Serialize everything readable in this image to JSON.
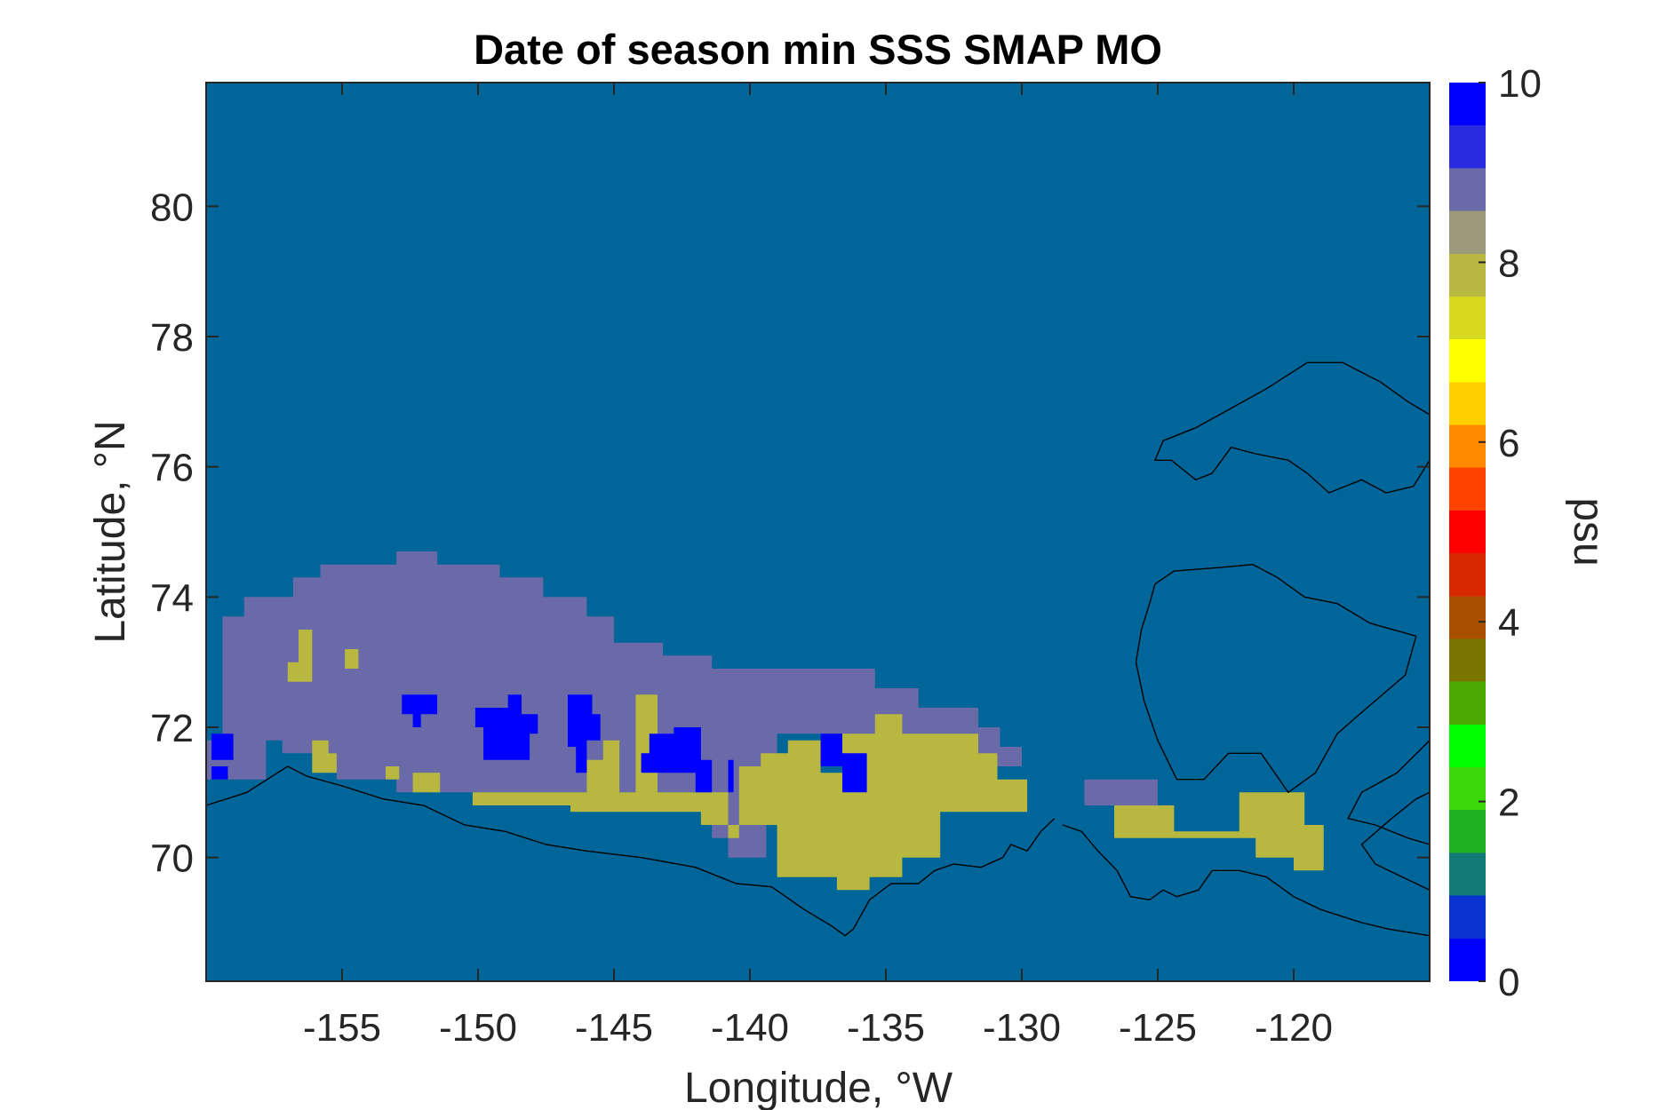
{
  "chart_data": {
    "type": "heatmap",
    "title": "Date of season min SSS SMAP MO",
    "xlabel": "Longitude, °W",
    "ylabel": "Latitude, °N",
    "xlim": [
      -160,
      -115
    ],
    "ylim": [
      68.1,
      81.9
    ],
    "xticks": [
      -155,
      -150,
      -145,
      -140,
      -135,
      -130,
      -125,
      -120
    ],
    "xtick_labels": [
      "-155",
      "-150",
      "-145",
      "-140",
      "-135",
      "-130",
      "-125",
      "-120"
    ],
    "yticks": [
      70,
      72,
      74,
      76,
      78,
      80
    ],
    "ytick_labels": [
      "70",
      "72",
      "74",
      "76",
      "78",
      "80"
    ],
    "colorbar": {
      "label": "psu",
      "range": [
        0,
        10
      ],
      "ticks": [
        0,
        2,
        4,
        6,
        8,
        10
      ],
      "tick_labels": [
        "0",
        "2",
        "4",
        "6",
        "8",
        "10"
      ]
    },
    "background_value": 1.3,
    "regions": [
      {
        "value": 9.2,
        "polygon": [
          [
            -160,
            71.8
          ],
          [
            -159.4,
            71.8
          ],
          [
            -159.4,
            73.7
          ],
          [
            -158.6,
            73.7
          ],
          [
            -158.6,
            74
          ],
          [
            -156.8,
            74
          ],
          [
            -156.8,
            74.3
          ],
          [
            -155.8,
            74.3
          ],
          [
            -155.8,
            74.5
          ],
          [
            -153,
            74.5
          ],
          [
            -153,
            74.7
          ],
          [
            -151.5,
            74.7
          ],
          [
            -151.5,
            74.5
          ],
          [
            -149.2,
            74.5
          ],
          [
            -149.2,
            74.3
          ],
          [
            -147.6,
            74.3
          ],
          [
            -147.6,
            74
          ],
          [
            -146,
            74
          ],
          [
            -146,
            73.7
          ],
          [
            -145,
            73.7
          ],
          [
            -145,
            73.3
          ],
          [
            -143.2,
            73.3
          ],
          [
            -143.2,
            73.1
          ],
          [
            -141.4,
            73.1
          ],
          [
            -141.4,
            72.9
          ],
          [
            -135.4,
            72.9
          ],
          [
            -135.4,
            72.6
          ],
          [
            -133.8,
            72.6
          ],
          [
            -133.8,
            72.3
          ],
          [
            -131.6,
            72.3
          ],
          [
            -131.6,
            72
          ],
          [
            -130.8,
            72
          ],
          [
            -130.8,
            71.7
          ],
          [
            -130,
            71.7
          ],
          [
            -130,
            71.4
          ],
          [
            -136.6,
            71.4
          ],
          [
            -136.6,
            71.9
          ],
          [
            -139,
            71.9
          ],
          [
            -139,
            70.5
          ],
          [
            -139.4,
            70.5
          ],
          [
            -139.4,
            70.0
          ],
          [
            -140.8,
            70.0
          ],
          [
            -140.8,
            70.3
          ],
          [
            -141.4,
            70.3
          ],
          [
            -141.4,
            71.0
          ],
          [
            -153,
            71.0
          ],
          [
            -153,
            71.2
          ],
          [
            -155.2,
            71.2
          ],
          [
            -155.2,
            71.6
          ],
          [
            -157.2,
            71.6
          ],
          [
            -157.2,
            71.8
          ],
          [
            -157.8,
            71.8
          ],
          [
            -157.8,
            71.2
          ],
          [
            -160,
            71.2
          ]
        ]
      },
      {
        "value": 9.2,
        "polygon": [
          [
            -127.7,
            71.2
          ],
          [
            -125.0,
            71.2
          ],
          [
            -125.0,
            70.8
          ],
          [
            -127.7,
            70.8
          ]
        ]
      },
      {
        "value": 8.2,
        "polygon": [
          [
            -150.2,
            71.0
          ],
          [
            -146,
            71.0
          ],
          [
            -146,
            71.5
          ],
          [
            -145.4,
            71.5
          ],
          [
            -145.4,
            71.8
          ],
          [
            -144.8,
            71.8
          ],
          [
            -144.8,
            71.0
          ],
          [
            -144.2,
            71.0
          ],
          [
            -144.2,
            72.5
          ],
          [
            -143.4,
            72.5
          ],
          [
            -143.4,
            71.0
          ],
          [
            -140.8,
            71.0
          ],
          [
            -140.8,
            70.3
          ],
          [
            -140.4,
            70.3
          ],
          [
            -140.4,
            71.4
          ],
          [
            -139.6,
            71.4
          ],
          [
            -139.6,
            71.6
          ],
          [
            -138.6,
            71.6
          ],
          [
            -138.6,
            71.8
          ],
          [
            -137.4,
            71.8
          ],
          [
            -137.4,
            71.3
          ],
          [
            -136.6,
            71.3
          ],
          [
            -136.6,
            71.9
          ],
          [
            -135.4,
            71.9
          ],
          [
            -135.4,
            72.2
          ],
          [
            -134.4,
            72.2
          ],
          [
            -134.4,
            71.9
          ],
          [
            -131.6,
            71.9
          ],
          [
            -131.6,
            71.6
          ],
          [
            -130.9,
            71.6
          ],
          [
            -130.9,
            71.2
          ],
          [
            -129.8,
            71.2
          ],
          [
            -129.8,
            70.7
          ],
          [
            -133.0,
            70.7
          ],
          [
            -133.0,
            70.0
          ],
          [
            -134.4,
            70.0
          ],
          [
            -134.4,
            69.7
          ],
          [
            -135.6,
            69.7
          ],
          [
            -135.6,
            69.5
          ],
          [
            -136.8,
            69.5
          ],
          [
            -136.8,
            69.7
          ],
          [
            -139.0,
            69.7
          ],
          [
            -139.0,
            70.5
          ],
          [
            -141.8,
            70.5
          ],
          [
            -141.8,
            70.7
          ],
          [
            -146.6,
            70.7
          ],
          [
            -146.6,
            70.8
          ],
          [
            -150.2,
            70.8
          ]
        ]
      },
      {
        "value": 8.2,
        "polygon": [
          [
            -126.6,
            70.8
          ],
          [
            -124.4,
            70.8
          ],
          [
            -124.4,
            70.4
          ],
          [
            -122.0,
            70.4
          ],
          [
            -122.0,
            71.0
          ],
          [
            -119.6,
            71.0
          ],
          [
            -119.6,
            70.5
          ],
          [
            -118.9,
            70.5
          ],
          [
            -118.9,
            69.8
          ],
          [
            -120.0,
            69.8
          ],
          [
            -120.0,
            70.0
          ],
          [
            -121.4,
            70.0
          ],
          [
            -121.4,
            70.3
          ],
          [
            -126.6,
            70.3
          ]
        ]
      },
      {
        "value": 8.2,
        "polygon": [
          [
            -157,
            73.0
          ],
          [
            -156.6,
            73.0
          ],
          [
            -156.6,
            73.5
          ],
          [
            -156.1,
            73.5
          ],
          [
            -156.1,
            72.7
          ],
          [
            -157,
            72.7
          ]
        ]
      },
      {
        "value": 8.2,
        "polygon": [
          [
            -154.9,
            73.2
          ],
          [
            -154.4,
            73.2
          ],
          [
            -154.4,
            72.9
          ],
          [
            -154.9,
            72.9
          ]
        ]
      },
      {
        "value": 8.2,
        "polygon": [
          [
            -156.1,
            71.8
          ],
          [
            -155.5,
            71.8
          ],
          [
            -155.5,
            71.6
          ],
          [
            -155.2,
            71.6
          ],
          [
            -155.2,
            71.3
          ],
          [
            -156.1,
            71.3
          ]
        ]
      },
      {
        "value": 8.2,
        "polygon": [
          [
            -152.4,
            71.3
          ],
          [
            -151.4,
            71.3
          ],
          [
            -151.4,
            71.0
          ],
          [
            -152.4,
            71.0
          ]
        ]
      },
      {
        "value": 8.2,
        "polygon": [
          [
            -153.4,
            71.4
          ],
          [
            -152.9,
            71.4
          ],
          [
            -152.9,
            71.2
          ],
          [
            -153.4,
            71.2
          ]
        ]
      },
      {
        "value": 0.1,
        "polygon": [
          [
            -160,
            71.2
          ],
          [
            -159.2,
            71.2
          ],
          [
            -159.2,
            71.4
          ],
          [
            -159.8,
            71.4
          ],
          [
            -159.8,
            71.5
          ],
          [
            -159,
            71.5
          ],
          [
            -159,
            71.9
          ],
          [
            -159.8,
            71.9
          ],
          [
            -159.8,
            71.2
          ]
        ]
      },
      {
        "value": 0.1,
        "polygon": [
          [
            -152.8,
            72.5
          ],
          [
            -151.5,
            72.5
          ],
          [
            -151.5,
            72.2
          ],
          [
            -152.1,
            72.2
          ],
          [
            -152.1,
            72.0
          ],
          [
            -152.4,
            72.0
          ],
          [
            -152.4,
            72.2
          ],
          [
            -152.8,
            72.2
          ]
        ]
      },
      {
        "value": 0.1,
        "polygon": [
          [
            -150.1,
            72.3
          ],
          [
            -148.9,
            72.3
          ],
          [
            -148.9,
            72.5
          ],
          [
            -148.4,
            72.5
          ],
          [
            -148.4,
            72.2
          ],
          [
            -147.8,
            72.2
          ],
          [
            -147.8,
            71.9
          ],
          [
            -148.1,
            71.9
          ],
          [
            -148.1,
            71.5
          ],
          [
            -149.8,
            71.5
          ],
          [
            -149.8,
            72.0
          ],
          [
            -150.1,
            72.0
          ]
        ]
      },
      {
        "value": 0.1,
        "polygon": [
          [
            -146.7,
            72.5
          ],
          [
            -145.8,
            72.5
          ],
          [
            -145.8,
            72.2
          ],
          [
            -145.5,
            72.2
          ],
          [
            -145.5,
            71.8
          ],
          [
            -146.0,
            71.8
          ],
          [
            -146.0,
            71.3
          ],
          [
            -146.4,
            71.3
          ],
          [
            -146.4,
            71.7
          ],
          [
            -146.7,
            71.7
          ]
        ]
      },
      {
        "value": 0.1,
        "polygon": [
          [
            -143.7,
            71.9
          ],
          [
            -142.8,
            71.9
          ],
          [
            -142.8,
            72.0
          ],
          [
            -141.8,
            72.0
          ],
          [
            -141.8,
            71.5
          ],
          [
            -141.4,
            71.5
          ],
          [
            -141.4,
            71.0
          ],
          [
            -142.0,
            71.0
          ],
          [
            -142.0,
            71.3
          ],
          [
            -144.0,
            71.3
          ],
          [
            -144.0,
            71.6
          ],
          [
            -143.7,
            71.6
          ]
        ]
      },
      {
        "value": 0.1,
        "polygon": [
          [
            -140.8,
            71.5
          ],
          [
            -140.6,
            71.5
          ],
          [
            -140.6,
            71.0
          ],
          [
            -140.8,
            71.0
          ]
        ]
      },
      {
        "value": 0.1,
        "polygon": [
          [
            -137.4,
            71.9
          ],
          [
            -136.6,
            71.9
          ],
          [
            -136.6,
            71.6
          ],
          [
            -135.7,
            71.6
          ],
          [
            -135.7,
            71.0
          ],
          [
            -136.6,
            71.0
          ],
          [
            -136.6,
            71.4
          ],
          [
            -137.4,
            71.4
          ]
        ]
      }
    ]
  },
  "colormap": [
    "#0000ff",
    "#0a32d0",
    "#137a78",
    "#1fb020",
    "#3dd80a",
    "#00ff00",
    "#4aa800",
    "#7a7600",
    "#a85000",
    "#d82800",
    "#ff0000",
    "#ff4200",
    "#ff8a00",
    "#ffd000",
    "#ffff00",
    "#d8d820",
    "#b8b840",
    "#9a9a7a",
    "#6a6aa8",
    "#2a2ae0",
    "#0000ff"
  ],
  "colors": {
    "background": "#006699",
    "coastline": "#000000"
  }
}
